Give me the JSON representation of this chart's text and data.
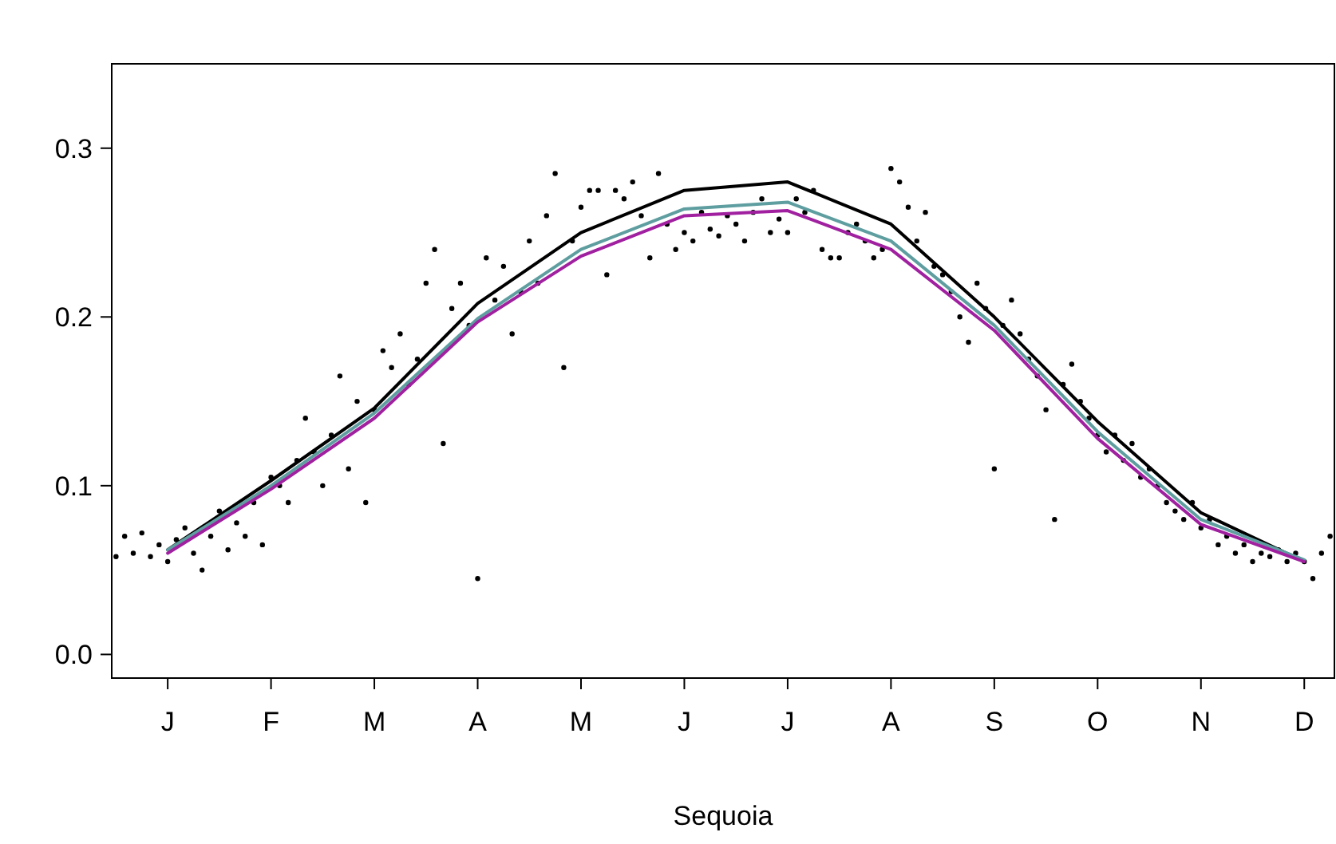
{
  "chart_data": {
    "type": "line",
    "xlabel": "Sequoia",
    "ylim": [
      -0.014,
      0.35
    ],
    "categories": [
      null,
      null,
      null,
      null,
      null,
      null,
      "J",
      null,
      null,
      null,
      null,
      null,
      null,
      null,
      null,
      null,
      null,
      null,
      "F",
      null,
      null,
      null,
      null,
      null,
      null,
      null,
      null,
      null,
      null,
      null,
      "M",
      null,
      null,
      null,
      null,
      null,
      null,
      null,
      null,
      null,
      null,
      null,
      "A",
      null,
      null,
      null,
      null,
      null,
      null,
      null,
      null,
      null,
      null,
      null,
      "M",
      null,
      null,
      null,
      null,
      null,
      null,
      null,
      null,
      null,
      null,
      null,
      "J",
      null,
      null,
      null,
      null,
      null,
      null,
      null,
      null,
      null,
      null,
      null,
      "J",
      null,
      null,
      null,
      null,
      null,
      null,
      null,
      null,
      null,
      null,
      null,
      "A",
      null,
      null,
      null,
      null,
      null,
      null,
      null,
      null,
      null,
      null,
      null,
      "S",
      null,
      null,
      null,
      null,
      null,
      null,
      null,
      null,
      null,
      null,
      null,
      "O",
      null,
      null,
      null,
      null,
      null,
      null,
      null,
      null,
      null,
      null,
      null,
      "N",
      null,
      null,
      null,
      null,
      null,
      null,
      null,
      null,
      null,
      null,
      null,
      "D",
      null,
      null,
      null
    ],
    "yticks": [
      {
        "value": 0,
        "label": "0.0"
      },
      {
        "value": 0.1,
        "label": "0.1"
      },
      {
        "value": 0.2,
        "label": "0.2"
      },
      {
        "value": 0.3,
        "label": "0.3"
      }
    ],
    "grid": false,
    "series": [
      {
        "type": "scatter",
        "color": "#000000",
        "marker": "circle",
        "values": [
          0.058,
          0.07,
          0.06,
          0.072,
          0.058,
          0.065,
          0.055,
          0.068,
          0.075,
          0.06,
          0.05,
          0.07,
          0.085,
          0.062,
          0.078,
          0.07,
          0.09,
          0.065,
          0.105,
          0.1,
          0.09,
          0.115,
          0.14,
          0.12,
          0.1,
          0.13,
          0.165,
          0.11,
          0.15,
          0.09,
          0.145,
          0.18,
          0.17,
          0.19,
          0.16,
          0.175,
          0.22,
          0.24,
          0.125,
          0.205,
          0.22,
          0.195,
          0.045,
          0.235,
          0.21,
          0.23,
          0.19,
          0.215,
          0.245,
          0.22,
          0.26,
          0.285,
          0.17,
          0.245,
          0.265,
          0.275,
          0.275,
          0.225,
          0.275,
          0.27,
          0.28,
          0.26,
          0.235,
          0.285,
          0.255,
          0.24,
          0.25,
          0.245,
          0.262,
          0.252,
          0.248,
          0.26,
          0.255,
          0.245,
          0.262,
          0.27,
          0.25,
          0.258,
          0.25,
          0.27,
          0.262,
          0.275,
          0.24,
          0.235,
          0.235,
          0.25,
          0.255,
          0.245,
          0.235,
          0.24,
          0.288,
          0.28,
          0.265,
          0.245,
          0.262,
          0.23,
          0.225,
          0.215,
          0.2,
          0.185,
          0.22,
          0.205,
          0.11,
          0.195,
          0.21,
          0.19,
          0.175,
          0.165,
          0.145,
          0.08,
          0.16,
          0.172,
          0.15,
          0.14,
          0.13,
          0.12,
          0.13,
          0.115,
          0.125,
          0.105,
          0.11,
          0.1,
          0.09,
          0.085,
          0.08,
          0.09,
          0.075,
          0.08,
          0.065,
          0.07,
          0.06,
          0.065,
          0.055,
          0.06,
          0.058,
          0.062,
          0.055,
          0.06,
          0.055,
          0.045,
          0.06,
          0.07
        ]
      },
      {
        "color": "#000000",
        "values": [
          null,
          null,
          null,
          null,
          null,
          null,
          0.062,
          null,
          null,
          null,
          null,
          null,
          null,
          null,
          null,
          null,
          null,
          null,
          0.103,
          null,
          null,
          null,
          null,
          null,
          null,
          null,
          null,
          null,
          null,
          null,
          0.146,
          null,
          null,
          null,
          null,
          null,
          null,
          null,
          null,
          null,
          null,
          null,
          0.208,
          null,
          null,
          null,
          null,
          null,
          null,
          null,
          null,
          null,
          null,
          null,
          0.25,
          null,
          null,
          null,
          null,
          null,
          null,
          null,
          null,
          null,
          null,
          null,
          0.275,
          null,
          null,
          null,
          null,
          null,
          null,
          null,
          null,
          null,
          null,
          null,
          0.28,
          null,
          null,
          null,
          null,
          null,
          null,
          null,
          null,
          null,
          null,
          null,
          0.255,
          null,
          null,
          null,
          null,
          null,
          null,
          null,
          null,
          null,
          null,
          null,
          0.2,
          null,
          null,
          null,
          null,
          null,
          null,
          null,
          null,
          null,
          null,
          null,
          0.138,
          null,
          null,
          null,
          null,
          null,
          null,
          null,
          null,
          null,
          null,
          null,
          0.084,
          null,
          null,
          null,
          null,
          null,
          null,
          null,
          null,
          null,
          null,
          null,
          0.055,
          null,
          null,
          null
        ]
      },
      {
        "color": "#5f9ea0",
        "values": [
          null,
          null,
          null,
          null,
          null,
          null,
          0.062,
          null,
          null,
          null,
          null,
          null,
          null,
          null,
          null,
          null,
          null,
          null,
          0.1,
          null,
          null,
          null,
          null,
          null,
          null,
          null,
          null,
          null,
          null,
          null,
          0.143,
          null,
          null,
          null,
          null,
          null,
          null,
          null,
          null,
          null,
          null,
          null,
          0.199,
          null,
          null,
          null,
          null,
          null,
          null,
          null,
          null,
          null,
          null,
          null,
          0.24,
          null,
          null,
          null,
          null,
          null,
          null,
          null,
          null,
          null,
          null,
          null,
          0.264,
          null,
          null,
          null,
          null,
          null,
          null,
          null,
          null,
          null,
          null,
          null,
          0.268,
          null,
          null,
          null,
          null,
          null,
          null,
          null,
          null,
          null,
          null,
          null,
          0.245,
          null,
          null,
          null,
          null,
          null,
          null,
          null,
          null,
          null,
          null,
          null,
          0.195,
          null,
          null,
          null,
          null,
          null,
          null,
          null,
          null,
          null,
          null,
          null,
          0.132,
          null,
          null,
          null,
          null,
          null,
          null,
          null,
          null,
          null,
          null,
          null,
          0.08,
          null,
          null,
          null,
          null,
          null,
          null,
          null,
          null,
          null,
          null,
          null,
          0.056,
          null,
          null,
          null
        ]
      },
      {
        "color": "#a020a0",
        "values": [
          null,
          null,
          null,
          null,
          null,
          null,
          0.06,
          null,
          null,
          null,
          null,
          null,
          null,
          null,
          null,
          null,
          null,
          null,
          0.098,
          null,
          null,
          null,
          null,
          null,
          null,
          null,
          null,
          null,
          null,
          null,
          0.14,
          null,
          null,
          null,
          null,
          null,
          null,
          null,
          null,
          null,
          null,
          null,
          0.197,
          null,
          null,
          null,
          null,
          null,
          null,
          null,
          null,
          null,
          null,
          null,
          0.236,
          null,
          null,
          null,
          null,
          null,
          null,
          null,
          null,
          null,
          null,
          null,
          0.26,
          null,
          null,
          null,
          null,
          null,
          null,
          null,
          null,
          null,
          null,
          null,
          0.263,
          null,
          null,
          null,
          null,
          null,
          null,
          null,
          null,
          null,
          null,
          null,
          0.24,
          null,
          null,
          null,
          null,
          null,
          null,
          null,
          null,
          null,
          null,
          null,
          0.192,
          null,
          null,
          null,
          null,
          null,
          null,
          null,
          null,
          null,
          null,
          null,
          0.128,
          null,
          null,
          null,
          null,
          null,
          null,
          null,
          null,
          null,
          null,
          null,
          0.077,
          null,
          null,
          null,
          null,
          null,
          null,
          null,
          null,
          null,
          null,
          null,
          0.055,
          null,
          null,
          null
        ]
      }
    ]
  }
}
